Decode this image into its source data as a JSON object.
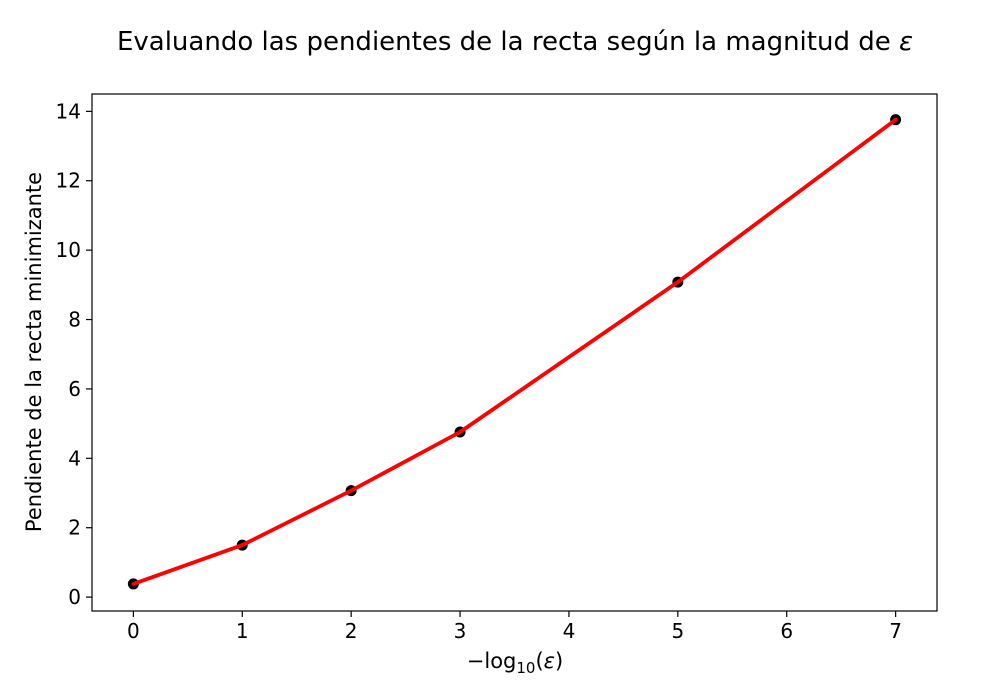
{
  "chart_data": {
    "type": "line",
    "title_main": "Evaluando las pendientes de la recta según la magnitud de ",
    "title_symbol": "ε",
    "xlabel_prefix": "−log",
    "xlabel_sub": "10",
    "xlabel_open": "(",
    "xlabel_symbol": "ε",
    "xlabel_close": ")",
    "ylabel": "Pendiente de la recta minimizante",
    "x": [
      0,
      1,
      2,
      3,
      5,
      7
    ],
    "y": [
      0.38,
      1.5,
      3.07,
      4.76,
      9.08,
      13.76
    ],
    "xlim": [
      -0.38,
      7.38
    ],
    "ylim": [
      -0.4,
      14.5
    ],
    "xticks": [
      0,
      1,
      2,
      3,
      4,
      5,
      6,
      7
    ],
    "yticks": [
      0,
      2,
      4,
      6,
      8,
      10,
      12,
      14
    ],
    "grid": false,
    "line_color": "#ff0000",
    "marker_color": "#000000"
  }
}
